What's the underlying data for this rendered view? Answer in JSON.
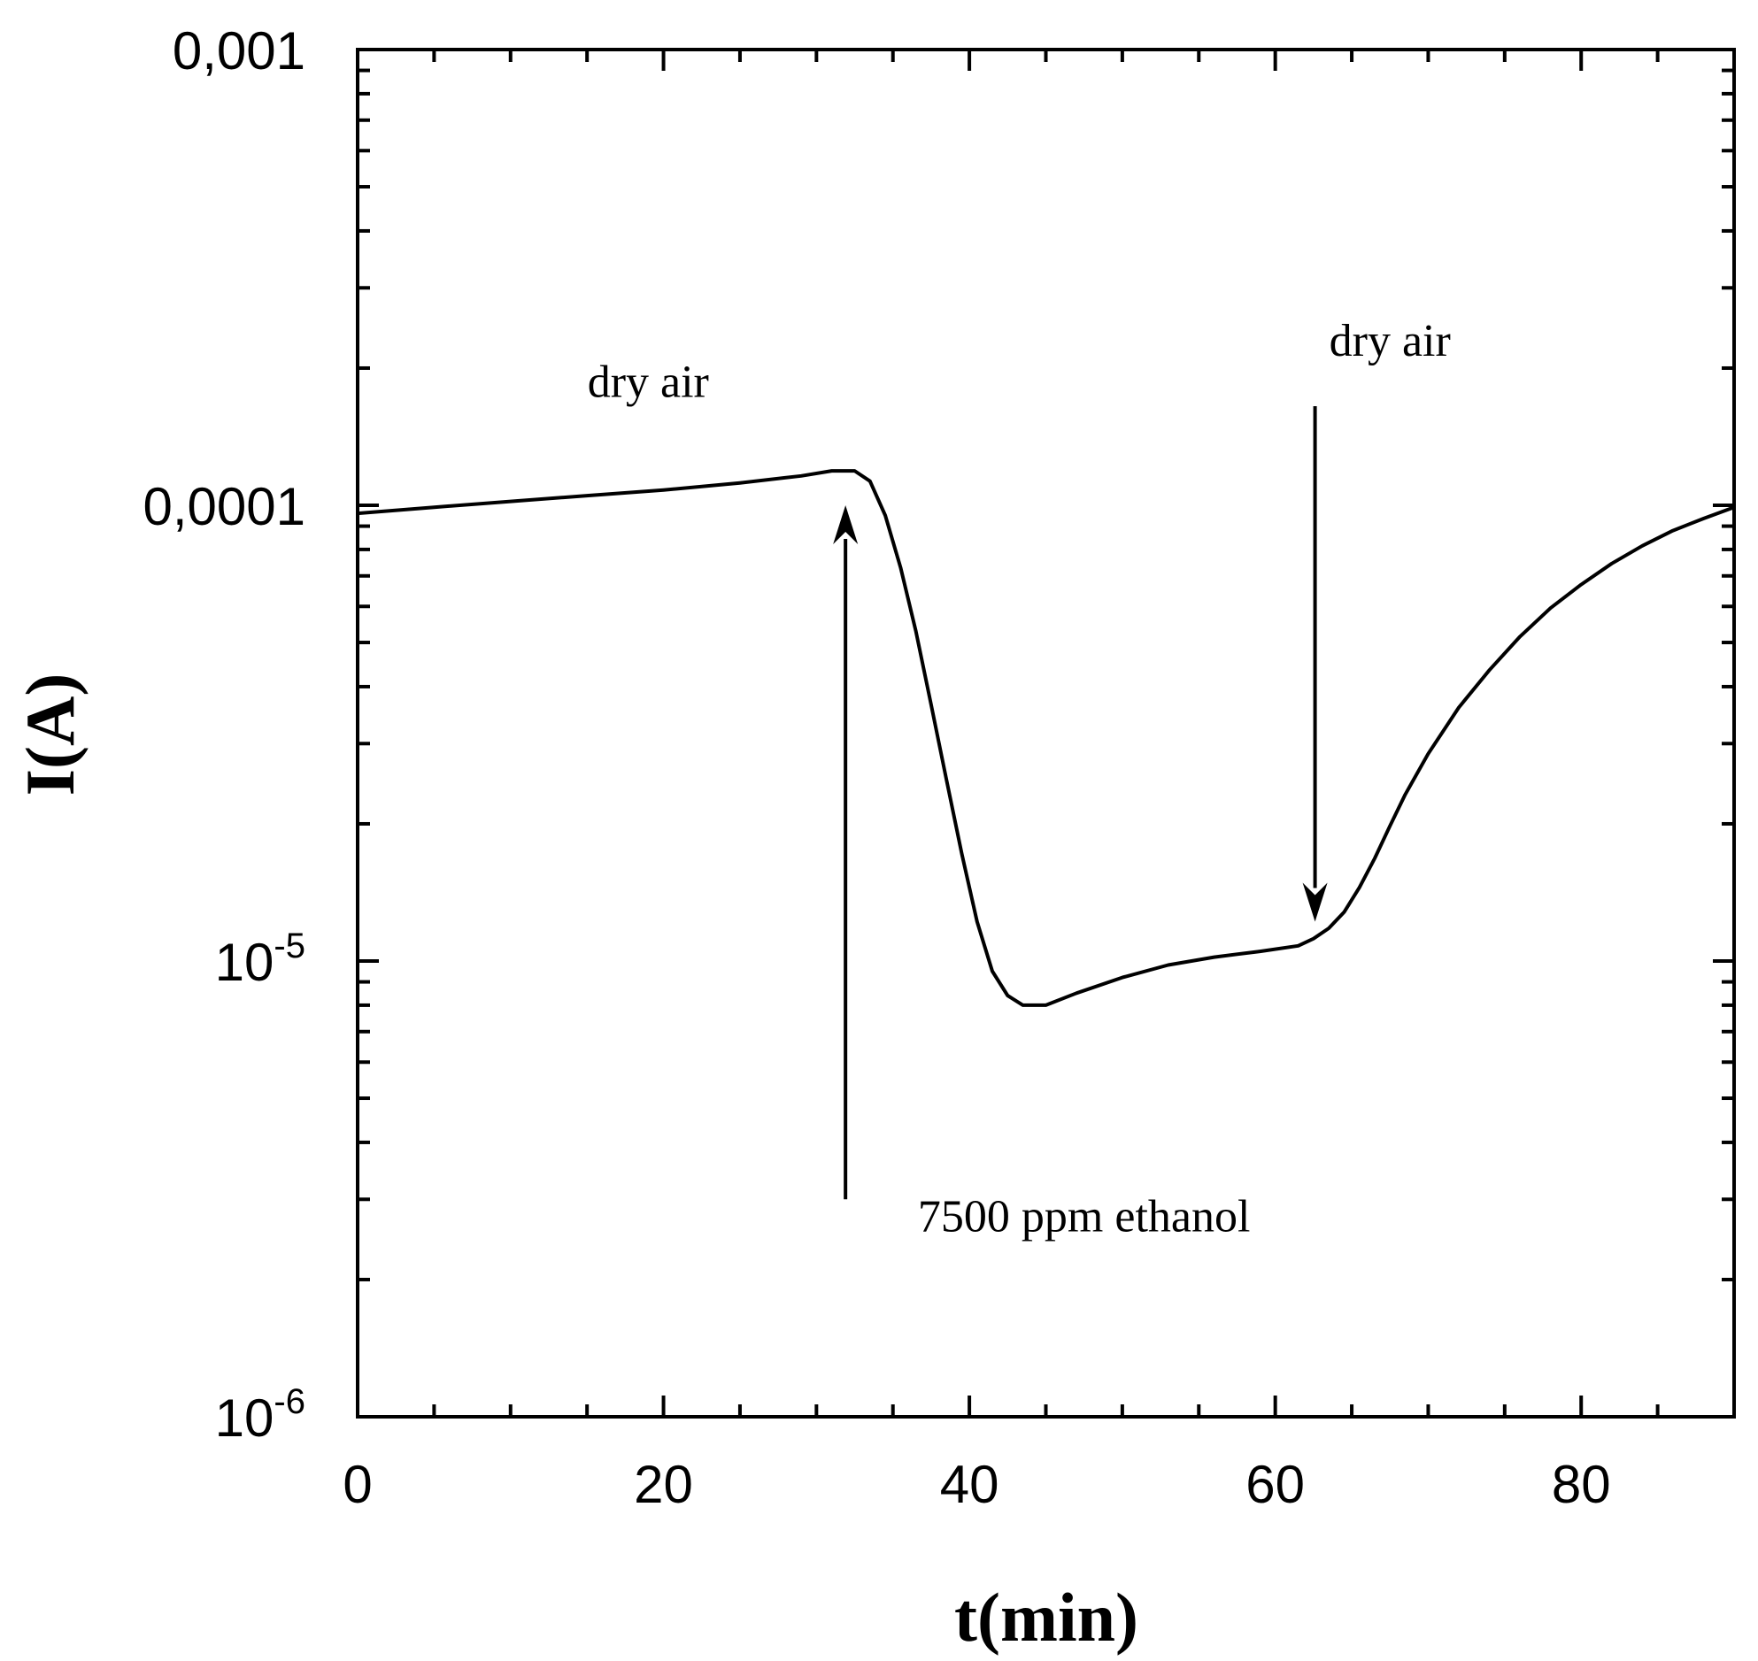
{
  "chart_data": {
    "type": "line",
    "xlabel": "t(min)",
    "ylabel": "I(A)",
    "xlim": [
      0,
      90
    ],
    "ylim": [
      1e-06,
      0.001
    ],
    "yscale": "log",
    "x_ticks": [
      0,
      20,
      40,
      60,
      80
    ],
    "x_tick_labels": [
      "0",
      "20",
      "40",
      "60",
      "80"
    ],
    "y_ticks": [
      {
        "value": 0.001,
        "label": "0,001",
        "base": "",
        "exp": ""
      },
      {
        "value": 0.0001,
        "label": "0,0001",
        "base": "",
        "exp": ""
      },
      {
        "value": 1e-05,
        "label": "",
        "base": "10",
        "exp": "-5"
      },
      {
        "value": 1e-06,
        "label": "",
        "base": "10",
        "exp": "-6"
      }
    ],
    "series": [
      {
        "name": "I(A)",
        "x": [
          0,
          5,
          10,
          15,
          20,
          25,
          29,
          31,
          32.5,
          33.5,
          34.5,
          35.5,
          36.5,
          37.5,
          38.5,
          39.5,
          40.5,
          41.5,
          42.5,
          43.5,
          45,
          47,
          50,
          53,
          56,
          59,
          61.5,
          62.5,
          63.5,
          64.5,
          65.5,
          66.5,
          67.5,
          68.5,
          70,
          72,
          74,
          76,
          78,
          80,
          82,
          84,
          86,
          88,
          90
        ],
        "y": [
          9.6e-05,
          9.9e-05,
          0.000102,
          0.000105,
          0.000108,
          0.000112,
          0.000116,
          0.000119,
          0.000119,
          0.000113,
          9.5e-05,
          7.3e-05,
          5.3e-05,
          3.65e-05,
          2.5e-05,
          1.72e-05,
          1.22e-05,
          9.5e-06,
          8.4e-06,
          8e-06,
          8e-06,
          8.5e-06,
          9.2e-06,
          9.8e-06,
          1.02e-05,
          1.05e-05,
          1.08e-05,
          1.12e-05,
          1.18e-05,
          1.28e-05,
          1.45e-05,
          1.68e-05,
          1.98e-05,
          2.32e-05,
          2.85e-05,
          3.6e-05,
          4.35e-05,
          5.15e-05,
          5.95e-05,
          6.7e-05,
          7.45e-05,
          8.15e-05,
          8.8e-05,
          9.35e-05,
          9.9e-05
        ]
      }
    ],
    "annotations": [
      {
        "text": "dry air",
        "x": 19,
        "y": 0.000173
      },
      {
        "text": "dry air",
        "x": 67.5,
        "y": 0.000213
      },
      {
        "text": "7500 ppm ethanol",
        "x": 47.5,
        "y": 2.55e-06
      }
    ],
    "arrows": [
      {
        "from": [
          31.9,
          3e-06
        ],
        "to": [
          31.9,
          0.0001
        ],
        "label": "7500 ppm ethanol"
      },
      {
        "from": [
          62.6,
          0.000165
        ],
        "to": [
          62.6,
          1.22e-05
        ],
        "label": "dry air"
      }
    ]
  }
}
